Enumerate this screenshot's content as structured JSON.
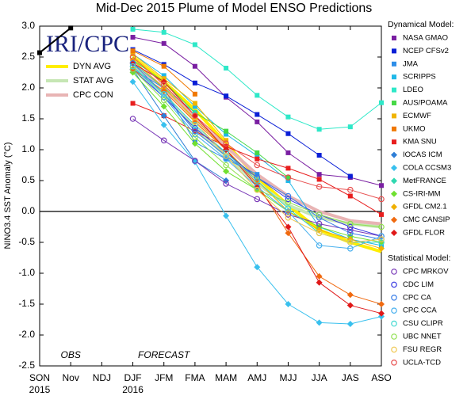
{
  "chart_data": {
    "type": "line",
    "title": "Mid-Dec 2015 Plume of Model ENSO Predictions",
    "y_label": "NINO3.4 SST Anomaly (°C)",
    "categories": [
      "SON",
      "Nov",
      "NDJ",
      "DJF",
      "JFM",
      "FMA",
      "MAM",
      "AMJ",
      "MJJ",
      "JJA",
      "JAS",
      "ASO"
    ],
    "category_years": [
      {
        "index": 0,
        "label": "2015"
      },
      {
        "index": 3,
        "label": "2016"
      }
    ],
    "ylim": [
      -2.5,
      3.0
    ],
    "yticks": [
      {
        "value": 3.0,
        "label": "3.0"
      },
      2.5,
      {
        "value": 2.0,
        "label": "2.0"
      },
      1.5,
      {
        "value": 1.0,
        "label": "1.0"
      },
      0.5,
      {
        "value": 0.0,
        "label": "0.0"
      },
      -0.5,
      {
        "value": -1.0,
        "label": "-1.0"
      },
      -1.5,
      {
        "value": -2.0,
        "label": "-2.0"
      },
      -2.5
    ],
    "zero_line": true,
    "annotations": [
      {
        "text": "OBS",
        "index": 1
      },
      {
        "text": "FORECAST",
        "index": 4
      }
    ],
    "logo": "IRI/CPC",
    "legend_titles": [
      "Dynamical Model:",
      "Statistical Model:"
    ],
    "observed": {
      "color": "#000000",
      "values": [
        2.57,
        2.97,
        null,
        null,
        null,
        null,
        null,
        null,
        null,
        null,
        null,
        null
      ]
    },
    "averages": [
      {
        "name": "DYN AVG",
        "color": "#ffee00",
        "values": [
          null,
          null,
          null,
          2.5,
          2.1,
          1.65,
          1.1,
          0.55,
          0.1,
          -0.3,
          -0.5,
          -0.65
        ]
      },
      {
        "name": "STAT AVG",
        "color": "#c6e6b4",
        "values": [
          null,
          null,
          null,
          2.35,
          1.9,
          1.35,
          0.9,
          0.45,
          0.1,
          -0.1,
          -0.2,
          -0.25
        ]
      },
      {
        "name": "CPC CON",
        "color": "#e8b4b4",
        "values": [
          null,
          null,
          null,
          2.4,
          2.0,
          1.5,
          1.05,
          0.6,
          0.25,
          0.0,
          -0.15,
          -0.2
        ]
      }
    ],
    "series": [
      {
        "name": "NASA GMAO",
        "group": 0,
        "marker": "square",
        "color": "#7a1fa2",
        "values": [
          null,
          null,
          null,
          2.82,
          2.72,
          2.35,
          1.85,
          1.45,
          0.95,
          0.6,
          0.55,
          0.42
        ]
      },
      {
        "name": "NCEP CFSv2",
        "group": 0,
        "marker": "square",
        "color": "#0a1fd6",
        "values": [
          null,
          null,
          null,
          2.62,
          2.38,
          2.08,
          1.87,
          1.57,
          1.26,
          0.91,
          0.57,
          null
        ]
      },
      {
        "name": "JMA",
        "group": 0,
        "marker": "square",
        "color": "#2e8ee8",
        "values": [
          null,
          null,
          null,
          2.3,
          2.0,
          1.12,
          0.85,
          0.6,
          null,
          null,
          null,
          null
        ]
      },
      {
        "name": "SCRIPPS",
        "group": 0,
        "marker": "square",
        "color": "#20b8e8",
        "values": [
          null,
          null,
          null,
          2.55,
          2.2,
          1.7,
          1.25,
          0.9,
          0.5,
          -0.25,
          -0.45,
          -0.55
        ]
      },
      {
        "name": "LDEO",
        "group": 0,
        "marker": "square",
        "color": "#2ee8c8",
        "values": [
          null,
          null,
          null,
          2.95,
          2.9,
          2.7,
          2.32,
          1.88,
          1.53,
          1.33,
          1.37,
          1.76
        ]
      },
      {
        "name": "AUS/POAMA",
        "group": 0,
        "marker": "square",
        "color": "#46d846",
        "values": [
          null,
          null,
          null,
          2.45,
          2.1,
          1.6,
          1.3,
          0.95,
          0.55,
          null,
          null,
          null
        ]
      },
      {
        "name": "ECMWF",
        "group": 0,
        "marker": "square",
        "color": "#f0b400",
        "values": [
          null,
          null,
          null,
          2.55,
          2.15,
          1.75,
          1.15,
          null,
          null,
          null,
          null,
          null
        ]
      },
      {
        "name": "UKMO",
        "group": 0,
        "marker": "square",
        "color": "#f07800",
        "values": [
          null,
          null,
          null,
          2.6,
          2.35,
          1.9,
          null,
          null,
          null,
          null,
          null,
          null
        ]
      },
      {
        "name": "KMA SNU",
        "group": 0,
        "marker": "square",
        "color": "#e81e1e",
        "values": [
          null,
          null,
          null,
          1.75,
          1.55,
          1.3,
          1.05,
          0.85,
          0.7,
          0.52,
          0.25,
          -0.05
        ]
      },
      {
        "name": "IOCAS ICM",
        "group": 0,
        "marker": "diamond",
        "color": "#2e7ed6",
        "values": [
          null,
          null,
          null,
          2.3,
          1.55,
          0.82,
          0.5,
          null,
          null,
          null,
          null,
          null
        ]
      },
      {
        "name": "COLA CCSM3",
        "group": 0,
        "marker": "diamond",
        "color": "#38c0ee",
        "values": [
          null,
          null,
          null,
          2.1,
          1.4,
          0.8,
          -0.07,
          -0.9,
          -1.5,
          -1.8,
          -1.82,
          -1.7
        ]
      },
      {
        "name": "MetFRANCE",
        "group": 0,
        "marker": "diamond",
        "color": "#30d8b0",
        "values": [
          null,
          null,
          null,
          2.4,
          2.0,
          1.6,
          null,
          null,
          null,
          null,
          null,
          null
        ]
      },
      {
        "name": "CS-IRI-MM",
        "group": 0,
        "marker": "diamond",
        "color": "#70e030",
        "values": [
          null,
          null,
          null,
          2.25,
          1.7,
          1.1,
          0.65,
          0.35,
          0.0,
          -0.25,
          -0.4,
          -0.5
        ]
      },
      {
        "name": "GFDL CM2.1",
        "group": 0,
        "marker": "diamond",
        "color": "#f0b000",
        "values": [
          null,
          null,
          null,
          2.45,
          2.0,
          1.5,
          1.0,
          0.5,
          0.0,
          -0.3,
          -0.45,
          -0.6
        ]
      },
      {
        "name": "CMC CANSIP",
        "group": 0,
        "marker": "diamond",
        "color": "#f06a10",
        "values": [
          null,
          null,
          null,
          2.3,
          1.95,
          1.45,
          1.0,
          0.45,
          -0.35,
          -1.05,
          -1.35,
          -1.5
        ]
      },
      {
        "name": "GFDL FLOR",
        "group": 0,
        "marker": "diamond",
        "color": "#e01818",
        "values": [
          null,
          null,
          null,
          2.4,
          2.1,
          1.55,
          1.0,
          0.4,
          -0.25,
          -1.15,
          -1.52,
          -1.65
        ]
      },
      {
        "name": "CPC MRKOV",
        "group": 1,
        "marker": "circle",
        "color": "#7a3ab8",
        "values": [
          null,
          null,
          null,
          1.5,
          1.15,
          0.82,
          0.45,
          0.2,
          -0.05,
          -0.2,
          -0.3,
          -0.4
        ]
      },
      {
        "name": "CDC LIM",
        "group": 1,
        "marker": "circle",
        "color": "#3a3ae0",
        "values": [
          null,
          null,
          null,
          2.3,
          1.85,
          1.35,
          0.95,
          0.55,
          0.2,
          -0.05,
          -0.25,
          -0.4
        ]
      },
      {
        "name": "CPC CA",
        "group": 1,
        "marker": "circle",
        "color": "#3a7ee8",
        "values": [
          null,
          null,
          null,
          2.4,
          1.9,
          1.3,
          0.9,
          0.55,
          0.25,
          -0.1,
          -0.35,
          -0.45
        ]
      },
      {
        "name": "CPC CCA",
        "group": 1,
        "marker": "circle",
        "color": "#48b0ee",
        "values": [
          null,
          null,
          null,
          2.35,
          1.85,
          1.25,
          0.85,
          0.4,
          0.0,
          -0.55,
          -0.6,
          -0.4
        ]
      },
      {
        "name": "CSU CLIPR",
        "group": 1,
        "marker": "circle",
        "color": "#40d8d0",
        "values": [
          null,
          null,
          null,
          2.35,
          1.9,
          1.4,
          0.95,
          0.5,
          0.05,
          -0.35,
          -0.5,
          -0.5
        ]
      },
      {
        "name": "UBC NNET",
        "group": 1,
        "marker": "circle",
        "color": "#90e050",
        "values": [
          null,
          null,
          null,
          2.3,
          1.8,
          1.2,
          0.75,
          0.35,
          0.15,
          -0.05,
          -0.2,
          -0.25
        ]
      },
      {
        "name": "FSU REGR",
        "group": 1,
        "marker": "circle",
        "color": "#f0c850",
        "values": [
          null,
          null,
          null,
          2.5,
          2.05,
          1.45,
          0.9,
          0.35,
          -0.1,
          -0.35,
          -0.5,
          -0.45
        ]
      },
      {
        "name": "UCLA-TCD",
        "group": 1,
        "marker": "circle",
        "color": "#e85050",
        "values": [
          null,
          null,
          null,
          2.5,
          2.05,
          1.55,
          1.1,
          0.75,
          0.55,
          0.4,
          0.35,
          0.2
        ]
      }
    ]
  }
}
